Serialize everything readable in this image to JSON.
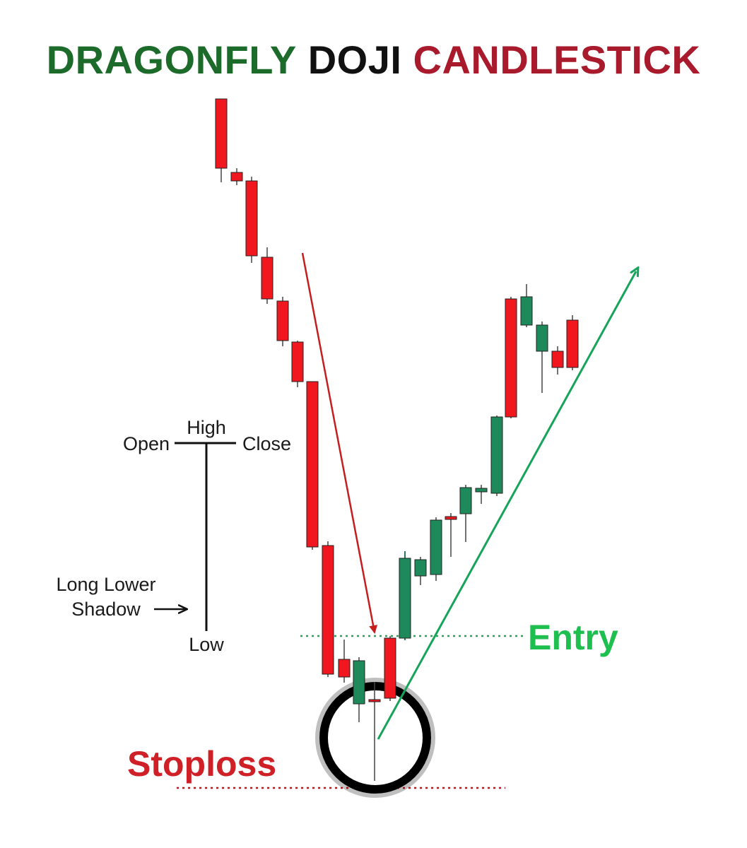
{
  "title": {
    "word1": "DRAGONFLY",
    "word2": "DOJI",
    "word3": "CANDLESTICK"
  },
  "colors": {
    "title_green": "#1d6b2a",
    "title_black": "#111111",
    "title_red": "#a81a2c",
    "bear": "#f0171f",
    "bull": "#1e8a5b",
    "entry": "#1fbf4f",
    "stoploss": "#cf1f27",
    "trend_down": "#c41e1e",
    "trend_up": "#16a35a"
  },
  "anatomy": {
    "open": "Open",
    "high": "High",
    "close": "Close",
    "shadow_line1": "Long Lower",
    "shadow_line2": "Shadow",
    "low": "Low"
  },
  "labels": {
    "entry": "Entry",
    "stoploss": "Stoploss"
  },
  "chart_data": {
    "type": "candlestick",
    "direction_sequence": [
      "bear",
      "bear",
      "bear",
      "bear",
      "bear",
      "bear",
      "bear",
      "bear",
      "bear",
      "bull",
      "bear",
      "bear",
      "doji",
      "bull",
      "bull",
      "bear",
      "bull",
      "bull",
      "bull",
      "bear",
      "bull",
      "bull",
      "bear",
      "bear",
      "bear",
      "bull"
    ],
    "pattern": "dragonfly doji",
    "markers": [
      "Entry",
      "Stoploss"
    ]
  }
}
